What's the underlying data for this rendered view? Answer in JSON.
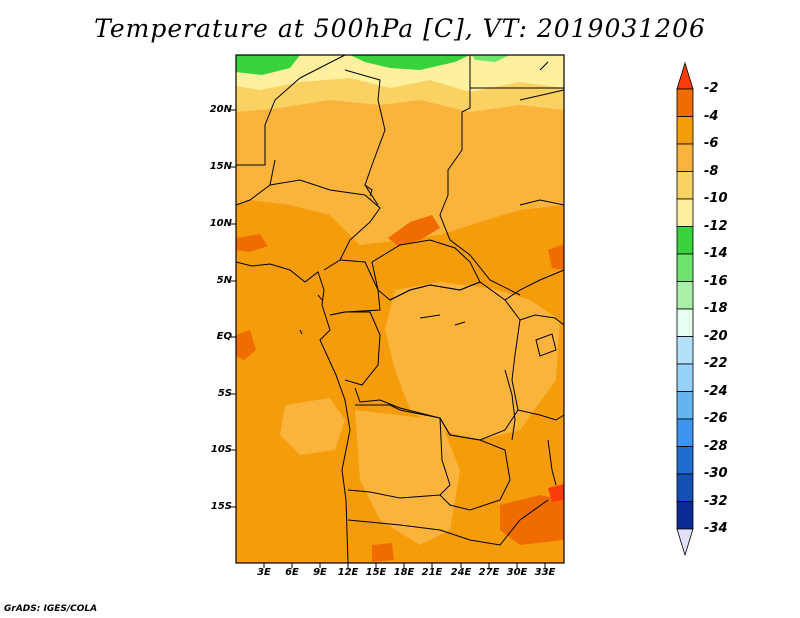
{
  "title": "Temperature at 500hPa [C], VT: 2019031206",
  "credit": "GrADS: IGES/COLA",
  "lat_labels": [
    "20N",
    "15N",
    "10N",
    "5N",
    "EQ",
    "5S",
    "10S",
    "15S"
  ],
  "lon_labels": [
    "3E",
    "6E",
    "9E",
    "12E",
    "15E",
    "18E",
    "21E",
    "24E",
    "27E",
    "30E",
    "33E"
  ],
  "colorbar": {
    "labels": [
      "-2",
      "-4",
      "-6",
      "-8",
      "-10",
      "-12",
      "-14",
      "-16",
      "-18",
      "-20",
      "-22",
      "-24",
      "-26",
      "-28",
      "-30",
      "-32",
      "-34"
    ],
    "colors": [
      "#fa3c0a",
      "#f06c00",
      "#f59c0a",
      "#fab43c",
      "#fad264",
      "#fff0a0",
      "#37d23c",
      "#6ee66e",
      "#a8f0a8",
      "#e6fff0",
      "#b4e1fa",
      "#96d2fa",
      "#64b4f0",
      "#3c96f0",
      "#1e6ed2",
      "#1450b4",
      "#0a2a96",
      "#0c0c6e",
      "#e0e0f8"
    ]
  },
  "colors": {
    "land_ocean_base": "#f59c0a",
    "warm_patch": "#f06c00",
    "cool_patch": "#fab43c",
    "pale_band": "#fad264",
    "lightest_band": "#fff0a0",
    "green_patch": "#37d23c",
    "border": "#000000"
  }
}
